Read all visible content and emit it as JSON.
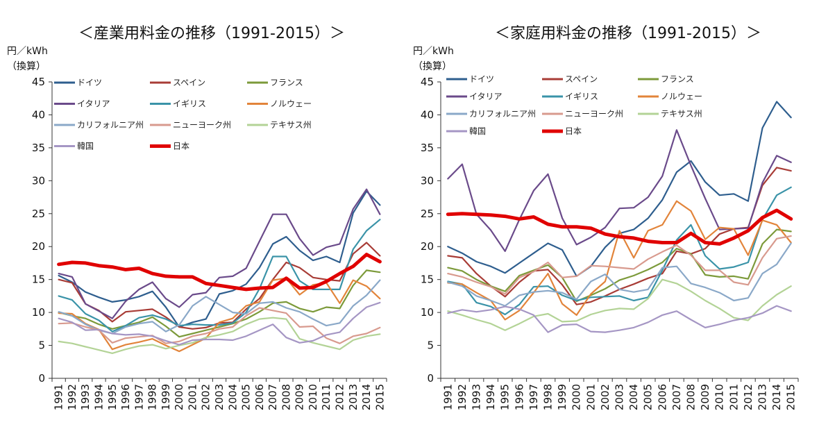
{
  "chart_data": [
    {
      "type": "line",
      "title": "＜産業用料金の推移（1991-2015）＞",
      "ylabel_line1": "円／kWh",
      "ylabel_line2": "（換算）",
      "ylim": [
        0,
        45
      ],
      "yticks": [
        0,
        5,
        10,
        15,
        20,
        25,
        30,
        35,
        40,
        45
      ],
      "x": [
        "1991",
        "1992",
        "1993",
        "1994",
        "1995",
        "1996",
        "1997",
        "1998",
        "1999",
        "2000",
        "2001",
        "2002",
        "2003",
        "2004",
        "2005",
        "2006",
        "2007",
        "2008",
        "2009",
        "2010",
        "2011",
        "2012",
        "2013",
        "2014",
        "2015"
      ],
      "series": [
        {
          "name": "ドイツ",
          "color": "#2e5e8e",
          "values": [
            15.6,
            14.6,
            13.1,
            12.3,
            11.6,
            11.9,
            12.4,
            13.2,
            10.8,
            7.8,
            8.5,
            9.0,
            12.8,
            13.3,
            14.3,
            16.8,
            20.4,
            21.5,
            19.4,
            17.9,
            18.5,
            17.6,
            25.1,
            28.4,
            26.3
          ]
        },
        {
          "name": "スペイン",
          "color": "#a83c36",
          "values": [
            15.0,
            14.5,
            11.3,
            10.3,
            8.6,
            10.1,
            10.3,
            10.5,
            9.3,
            7.8,
            7.5,
            7.7,
            8.4,
            8.5,
            10.5,
            12.1,
            15.0,
            17.6,
            16.8,
            15.3,
            15.0,
            14.8,
            18.9,
            20.6,
            18.6
          ]
        },
        {
          "name": "フランス",
          "color": "#7c9a3a",
          "values": [
            10.0,
            9.5,
            9.1,
            8.2,
            7.5,
            8.0,
            8.5,
            9.3,
            7.9,
            6.3,
            6.8,
            7.3,
            7.8,
            8.3,
            9.0,
            10.1,
            11.4,
            11.6,
            10.6,
            10.1,
            10.8,
            10.6,
            14.1,
            16.4,
            16.1
          ]
        },
        {
          "name": "イタリア",
          "color": "#6a4a8a",
          "values": [
            15.9,
            15.4,
            11.3,
            10.2,
            9.1,
            11.7,
            13.5,
            14.6,
            12.1,
            10.8,
            12.7,
            13.0,
            15.3,
            15.5,
            16.7,
            20.8,
            24.9,
            24.9,
            21.2,
            18.7,
            19.9,
            20.4,
            25.7,
            28.7,
            24.9
          ]
        },
        {
          "name": "イギリス",
          "color": "#3a93a8",
          "values": [
            12.5,
            11.9,
            9.8,
            8.8,
            7.1,
            8.0,
            9.2,
            9.6,
            9.0,
            8.0,
            8.2,
            8.1,
            8.1,
            8.4,
            10.0,
            13.6,
            18.5,
            18.5,
            14.8,
            13.5,
            13.5,
            13.5,
            19.6,
            22.4,
            24.1
          ]
        },
        {
          "name": "ノルウェー",
          "color": "#e2843a",
          "values": [
            9.9,
            9.8,
            8.3,
            7.4,
            4.4,
            5.1,
            5.5,
            6.0,
            5.0,
            4.1,
            5.1,
            6.1,
            8.5,
            9.1,
            11.0,
            11.6,
            14.9,
            15.2,
            12.7,
            14.2,
            14.5,
            11.4,
            14.9,
            14.0,
            12.1
          ]
        },
        {
          "name": "カリフォルニア州",
          "color": "#8aa8c8",
          "values": [
            10.1,
            9.5,
            8.2,
            7.3,
            6.8,
            7.8,
            8.3,
            8.6,
            7.1,
            8.1,
            11.0,
            12.4,
            11.2,
            10.0,
            9.8,
            11.4,
            11.6,
            10.7,
            10.1,
            9.0,
            8.0,
            8.4,
            11.0,
            12.6,
            14.9
          ]
        },
        {
          "name": "ニューヨーク州",
          "color": "#d89a8e",
          "values": [
            8.3,
            8.4,
            7.8,
            7.3,
            5.4,
            6.1,
            6.3,
            6.5,
            5.3,
            5.6,
            6.4,
            6.8,
            7.5,
            7.8,
            9.5,
            10.7,
            10.3,
            9.9,
            7.8,
            7.9,
            6.1,
            5.3,
            6.4,
            6.8,
            7.7
          ]
        },
        {
          "name": "テキサス州",
          "color": "#b3d396",
          "values": [
            5.6,
            5.3,
            4.8,
            4.3,
            3.8,
            4.4,
            4.9,
            5.1,
            4.5,
            5.0,
            5.4,
            6.2,
            6.6,
            7.1,
            8.2,
            9.0,
            9.2,
            9.0,
            6.0,
            5.4,
            4.9,
            4.4,
            5.8,
            6.4,
            6.7
          ]
        },
        {
          "name": "韓国",
          "color": "#a596c4",
          "values": [
            9.1,
            8.5,
            7.3,
            7.4,
            6.8,
            6.6,
            6.7,
            6.4,
            5.7,
            5.1,
            5.8,
            5.9,
            5.9,
            5.8,
            6.4,
            7.3,
            8.2,
            6.2,
            5.4,
            5.7,
            6.6,
            7.0,
            9.1,
            10.8,
            11.5
          ]
        },
        {
          "name": "日本",
          "color": "#e00000",
          "values": [
            17.3,
            17.6,
            17.5,
            17.1,
            16.9,
            16.5,
            16.7,
            15.9,
            15.5,
            15.4,
            15.4,
            14.4,
            14.1,
            13.8,
            13.5,
            13.7,
            13.8,
            15.2,
            13.7,
            13.8,
            14.7,
            15.9,
            17.0,
            18.8,
            17.7
          ]
        }
      ]
    },
    {
      "type": "line",
      "title": "＜家庭用料金の推移（1991-2015）＞",
      "ylabel_line1": "円／kWh",
      "ylabel_line2": "（換算）",
      "ylim": [
        0,
        45
      ],
      "yticks": [
        0,
        5,
        10,
        15,
        20,
        25,
        30,
        35,
        40,
        45
      ],
      "x": [
        "1991",
        "1992",
        "1993",
        "1994",
        "1995",
        "1996",
        "1997",
        "1998",
        "1999",
        "2000",
        "2001",
        "2002",
        "2003",
        "2004",
        "2005",
        "2006",
        "2007",
        "2008",
        "2009",
        "2010",
        "2011",
        "2012",
        "2013",
        "2014",
        "2015"
      ],
      "series": [
        {
          "name": "ドイツ",
          "color": "#2e5e8e",
          "values": [
            20.0,
            19.0,
            17.7,
            17.0,
            16.0,
            17.5,
            19.0,
            20.5,
            19.5,
            15.5,
            17.0,
            19.9,
            22.0,
            22.6,
            24.3,
            27.1,
            31.3,
            33.0,
            29.8,
            27.8,
            28.0,
            26.9,
            38.0,
            42.0,
            39.6
          ]
        },
        {
          "name": "スペイン",
          "color": "#a83c36",
          "values": [
            18.6,
            18.3,
            15.9,
            14.0,
            12.4,
            14.6,
            16.3,
            16.5,
            14.2,
            11.2,
            11.6,
            12.5,
            13.5,
            14.3,
            15.2,
            15.9,
            19.3,
            18.9,
            19.7,
            21.9,
            22.7,
            22.9,
            29.3,
            32.0,
            31.5
          ]
        },
        {
          "name": "フランス",
          "color": "#7c9a3a",
          "values": [
            16.8,
            16.3,
            15.0,
            14.0,
            13.2,
            15.6,
            16.4,
            17.2,
            15.3,
            11.7,
            12.6,
            13.6,
            14.9,
            15.6,
            16.5,
            17.6,
            19.7,
            18.9,
            15.7,
            15.4,
            15.5,
            15.1,
            20.4,
            22.6,
            22.3
          ]
        },
        {
          "name": "イタリア",
          "color": "#6a4a8a",
          "values": [
            30.3,
            32.5,
            24.9,
            22.5,
            19.3,
            24.1,
            28.5,
            31.0,
            24.3,
            20.3,
            21.4,
            22.9,
            25.8,
            25.9,
            27.5,
            30.7,
            37.7,
            32.3,
            27.3,
            22.6,
            22.7,
            22.8,
            29.7,
            33.8,
            32.8
          ]
        },
        {
          "name": "イギリス",
          "color": "#3a93a8",
          "values": [
            14.7,
            14.3,
            11.5,
            10.9,
            9.7,
            11.2,
            13.9,
            14.0,
            12.6,
            11.8,
            12.3,
            12.4,
            12.5,
            11.8,
            12.3,
            16.4,
            21.0,
            23.3,
            18.6,
            16.6,
            16.9,
            17.6,
            24.1,
            27.8,
            29.0
          ]
        },
        {
          "name": "ノルウェー",
          "color": "#e2843a",
          "values": [
            14.5,
            14.3,
            13.0,
            11.8,
            8.9,
            10.3,
            13.0,
            15.9,
            11.3,
            9.6,
            12.8,
            14.7,
            22.4,
            18.3,
            22.4,
            23.3,
            26.9,
            25.4,
            21.1,
            22.9,
            22.7,
            18.7,
            24.0,
            23.3,
            20.6
          ]
        },
        {
          "name": "カリフォルニア州",
          "color": "#8aa8c8",
          "values": [
            14.6,
            14.0,
            12.5,
            11.8,
            11.0,
            12.6,
            13.1,
            13.3,
            13.0,
            12.0,
            14.7,
            15.8,
            13.5,
            13.1,
            13.5,
            16.8,
            17.0,
            14.4,
            13.8,
            13.0,
            11.8,
            12.2,
            15.9,
            17.3,
            20.5
          ]
        },
        {
          "name": "ニューヨーク州",
          "color": "#d89a8e",
          "values": [
            15.9,
            15.4,
            14.6,
            13.9,
            12.8,
            15.3,
            16.2,
            17.6,
            15.3,
            15.5,
            17.1,
            17.0,
            16.8,
            16.6,
            18.1,
            19.2,
            20.2,
            18.7,
            16.4,
            16.4,
            14.6,
            14.2,
            18.3,
            21.2,
            21.6
          ]
        },
        {
          "name": "テキサス州",
          "color": "#b3d396",
          "values": [
            10.2,
            9.6,
            8.9,
            8.3,
            7.3,
            8.3,
            9.4,
            9.8,
            8.6,
            8.7,
            9.7,
            10.3,
            10.6,
            10.5,
            12.1,
            15.0,
            14.4,
            13.2,
            11.8,
            10.6,
            9.2,
            8.8,
            11.0,
            12.7,
            14.0
          ]
        },
        {
          "name": "韓国",
          "color": "#a596c4",
          "values": [
            9.9,
            10.4,
            10.1,
            10.4,
            10.9,
            10.5,
            9.6,
            7.0,
            8.1,
            8.2,
            7.1,
            7.0,
            7.3,
            7.7,
            8.5,
            9.6,
            10.2,
            8.9,
            7.7,
            8.2,
            8.8,
            9.2,
            9.9,
            11.0,
            10.2
          ]
        },
        {
          "name": "日本",
          "color": "#e00000",
          "values": [
            24.9,
            25.0,
            24.9,
            24.8,
            24.6,
            24.2,
            24.5,
            23.4,
            23.0,
            23.0,
            22.8,
            21.9,
            21.5,
            21.3,
            20.8,
            20.6,
            20.6,
            22.0,
            20.6,
            20.4,
            21.3,
            22.4,
            24.4,
            25.5,
            24.2
          ]
        }
      ]
    }
  ]
}
